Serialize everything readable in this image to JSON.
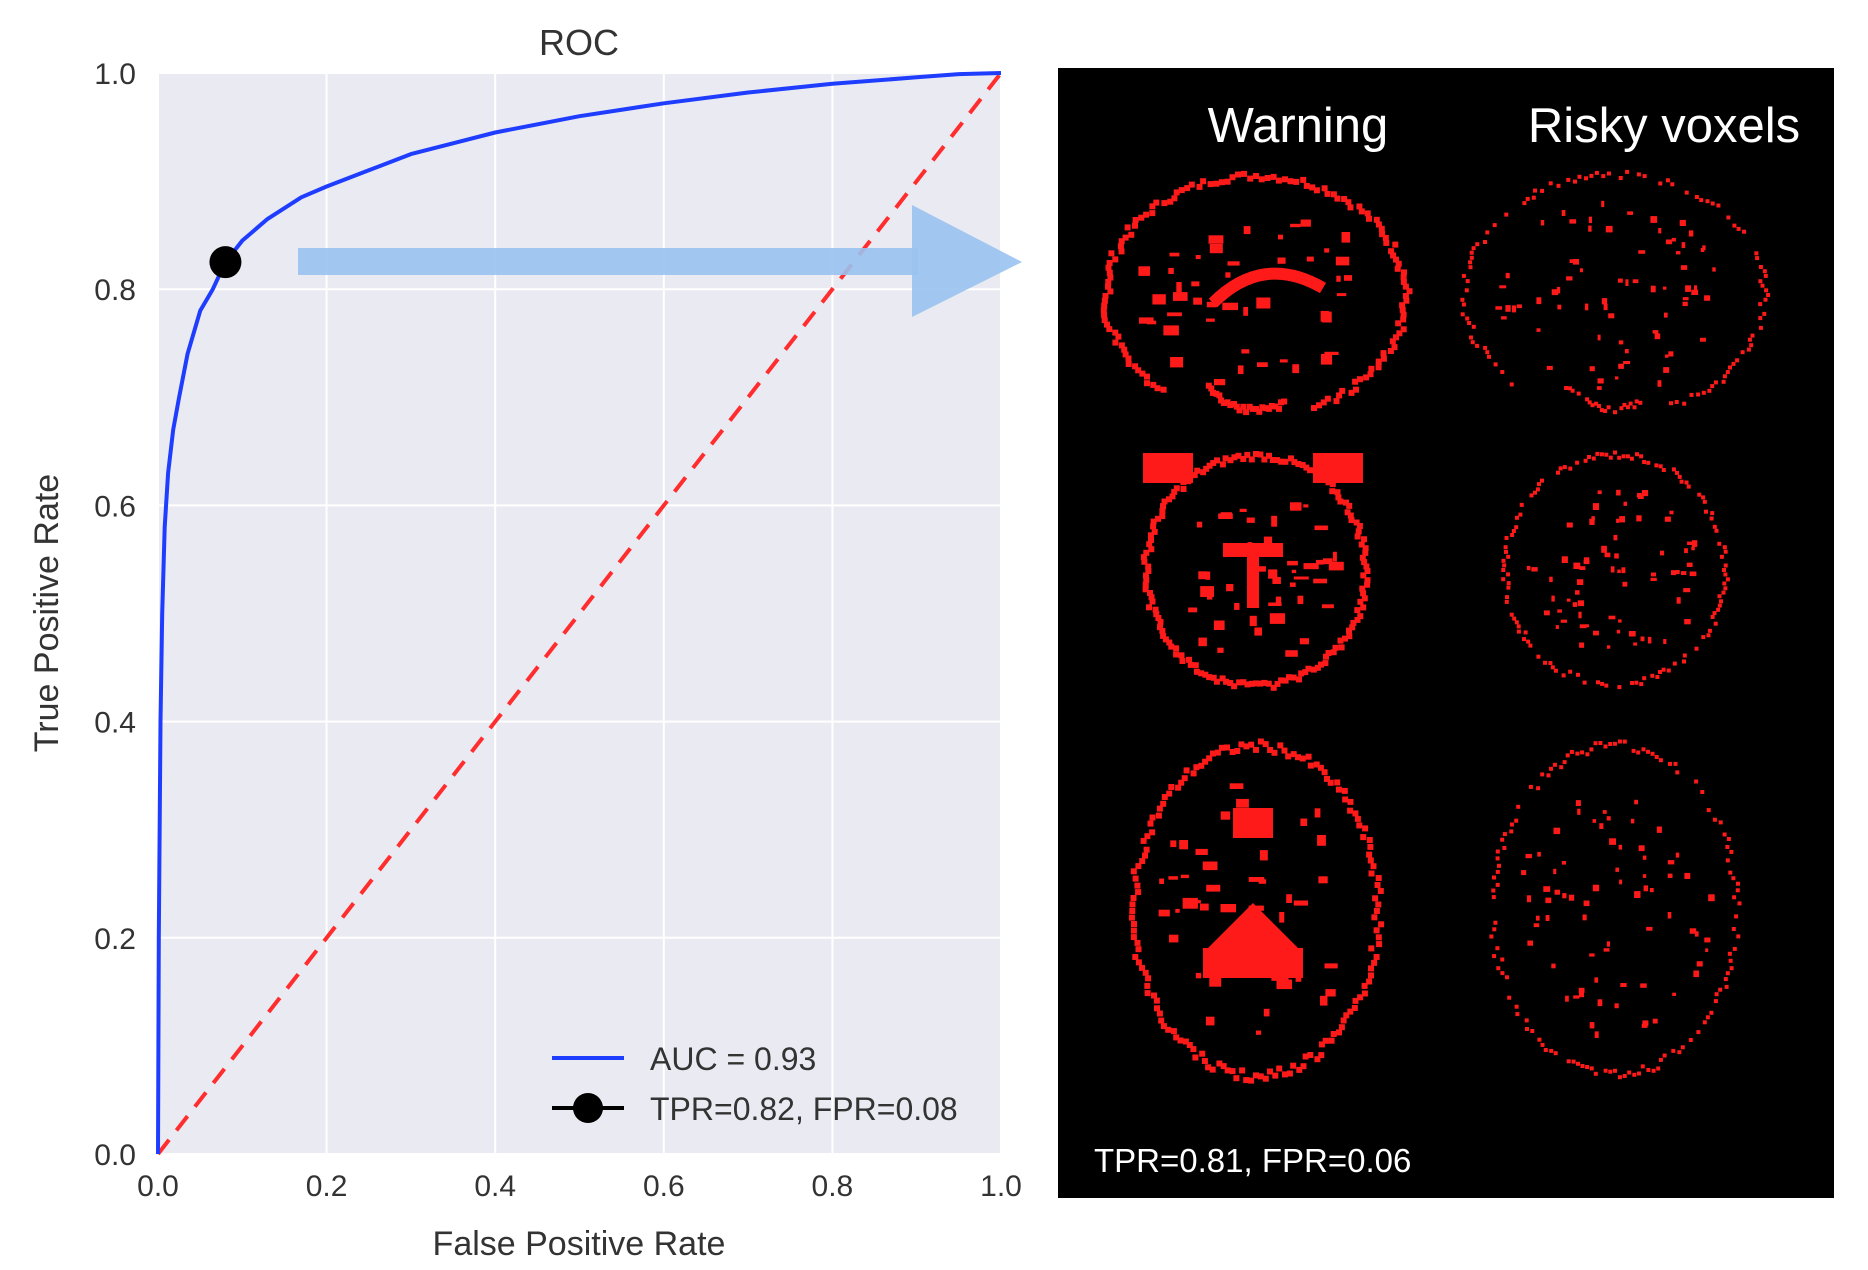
{
  "chart_data": {
    "type": "line",
    "title": "ROC",
    "xlabel": "False Positive Rate",
    "ylabel": "True Positive Rate",
    "xlim": [
      0,
      1
    ],
    "ylim": [
      0,
      1
    ],
    "xticks": [
      "0.0",
      "0.2",
      "0.4",
      "0.6",
      "0.8",
      "1.0"
    ],
    "yticks": [
      "0.0",
      "0.2",
      "0.4",
      "0.6",
      "0.8",
      "1.0"
    ],
    "grid": true,
    "legend_position": "bottom-right",
    "series": [
      {
        "name": "AUC = 0.93",
        "color": "#1f3dff",
        "style": "solid",
        "x": [
          0.0,
          0.001,
          0.003,
          0.005,
          0.008,
          0.012,
          0.018,
          0.025,
          0.035,
          0.05,
          0.065,
          0.08,
          0.1,
          0.13,
          0.17,
          0.2,
          0.25,
          0.3,
          0.35,
          0.4,
          0.5,
          0.6,
          0.7,
          0.8,
          0.9,
          0.95,
          1.0
        ],
        "y": [
          0.0,
          0.2,
          0.4,
          0.5,
          0.58,
          0.63,
          0.67,
          0.7,
          0.74,
          0.78,
          0.8,
          0.825,
          0.845,
          0.865,
          0.885,
          0.895,
          0.91,
          0.925,
          0.935,
          0.945,
          0.96,
          0.972,
          0.982,
          0.99,
          0.996,
          0.999,
          1.0
        ]
      },
      {
        "name": "",
        "color": "#ff2d2d",
        "style": "dashed",
        "x": [
          0,
          1
        ],
        "y": [
          0,
          1
        ]
      },
      {
        "name": "TPR=0.82, FPR=0.08",
        "color": "#000000",
        "style": "marker",
        "x": [
          0.08
        ],
        "y": [
          0.825
        ]
      }
    ]
  },
  "brain_panel": {
    "col_titles": [
      "Warning",
      "Risky voxels"
    ],
    "caption": "TPR=0.81, FPR=0.06",
    "mask_color": "#ff1a1a",
    "background": "#000000"
  },
  "arrow": {
    "color": "#99c2f0"
  }
}
